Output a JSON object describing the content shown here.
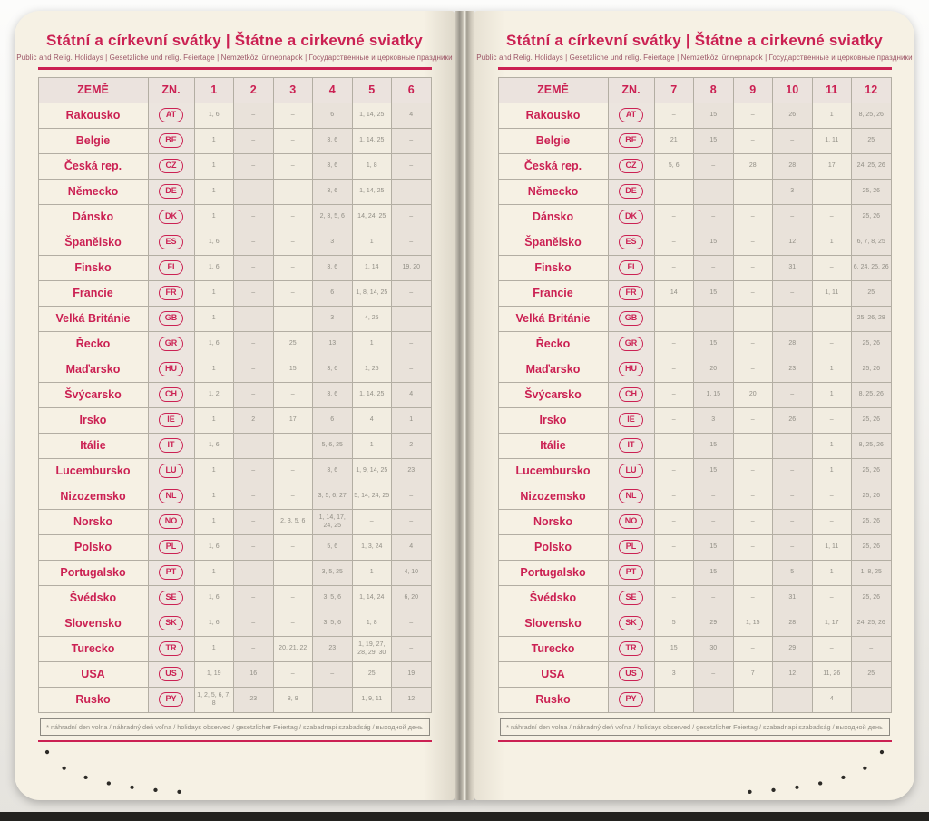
{
  "header": {
    "title": "Státní a církevní svátky | Štátne a cirkevné sviatky",
    "subtitle": "Public and Relig. Holidays | Gesetzliche und relig. Feiertage | Nemzetközi ünnepnapok | Государственные и церковные праздники"
  },
  "footnote": "* náhradní den volna / náhradný deň voľna / holidays observed / gesetzlicher Feiertag / szabadnapi szabadság / выходной день",
  "columns": {
    "country": "ZEMĚ",
    "code": "ZN."
  },
  "colors": {
    "accent_magenta": "#cb2153",
    "subtitle_rose": "#9c5566",
    "page_cream": "#f6f1e4",
    "cell_text_gray": "#918e85",
    "border_gray": "#8d8a82"
  },
  "countries": [
    {
      "name": "Rakousko",
      "code": "AT"
    },
    {
      "name": "Belgie",
      "code": "BE"
    },
    {
      "name": "Česká rep.",
      "code": "CZ"
    },
    {
      "name": "Německo",
      "code": "DE"
    },
    {
      "name": "Dánsko",
      "code": "DK"
    },
    {
      "name": "Španělsko",
      "code": "ES"
    },
    {
      "name": "Finsko",
      "code": "FI"
    },
    {
      "name": "Francie",
      "code": "FR"
    },
    {
      "name": "Velká Británie",
      "code": "GB"
    },
    {
      "name": "Řecko",
      "code": "GR"
    },
    {
      "name": "Maďarsko",
      "code": "HU"
    },
    {
      "name": "Švýcarsko",
      "code": "CH"
    },
    {
      "name": "Irsko",
      "code": "IE"
    },
    {
      "name": "Itálie",
      "code": "IT"
    },
    {
      "name": "Lucembursko",
      "code": "LU"
    },
    {
      "name": "Nizozemsko",
      "code": "NL"
    },
    {
      "name": "Norsko",
      "code": "NO"
    },
    {
      "name": "Polsko",
      "code": "PL"
    },
    {
      "name": "Portugalsko",
      "code": "PT"
    },
    {
      "name": "Švédsko",
      "code": "SE"
    },
    {
      "name": "Slovensko",
      "code": "SK"
    },
    {
      "name": "Turecko",
      "code": "TR"
    },
    {
      "name": "USA",
      "code": "US"
    },
    {
      "name": "Rusko",
      "code": "PY"
    }
  ],
  "pages": [
    {
      "months": [
        "1",
        "2",
        "3",
        "4",
        "5",
        "6"
      ],
      "rows": [
        [
          "1, 6",
          "–",
          "–",
          "6",
          "1, 14, 25",
          "4"
        ],
        [
          "1",
          "–",
          "–",
          "3, 6",
          "1, 14, 25",
          "–"
        ],
        [
          "1",
          "–",
          "–",
          "3, 6",
          "1, 8",
          "–"
        ],
        [
          "1",
          "–",
          "–",
          "3, 6",
          "1, 14, 25",
          "–"
        ],
        [
          "1",
          "–",
          "–",
          "2, 3, 5, 6",
          "14, 24, 25",
          "–"
        ],
        [
          "1, 6",
          "–",
          "–",
          "3",
          "1",
          "–"
        ],
        [
          "1, 6",
          "–",
          "–",
          "3, 6",
          "1, 14",
          "19, 20"
        ],
        [
          "1",
          "–",
          "–",
          "6",
          "1, 8, 14, 25",
          "–"
        ],
        [
          "1",
          "–",
          "–",
          "3",
          "4, 25",
          "–"
        ],
        [
          "1, 6",
          "–",
          "25",
          "13",
          "1",
          "–"
        ],
        [
          "1",
          "–",
          "15",
          "3, 6",
          "1, 25",
          "–"
        ],
        [
          "1, 2",
          "–",
          "–",
          "3, 6",
          "1, 14, 25",
          "4"
        ],
        [
          "1",
          "2",
          "17",
          "6",
          "4",
          "1"
        ],
        [
          "1, 6",
          "–",
          "–",
          "5, 6, 25",
          "1",
          "2"
        ],
        [
          "1",
          "–",
          "–",
          "3, 6",
          "1, 9, 14, 25",
          "23"
        ],
        [
          "1",
          "–",
          "–",
          "3, 5, 6, 27",
          "5, 14, 24, 25",
          "–"
        ],
        [
          "1",
          "–",
          "2, 3, 5, 6",
          "1, 14, 17, 24, 25",
          "–",
          "–"
        ],
        [
          "1, 6",
          "–",
          "–",
          "5, 6",
          "1, 3, 24",
          "4"
        ],
        [
          "1",
          "–",
          "–",
          "3, 5, 25",
          "1",
          "4, 10"
        ],
        [
          "1, 6",
          "–",
          "–",
          "3, 5, 6",
          "1, 14, 24",
          "6, 20"
        ],
        [
          "1, 6",
          "–",
          "–",
          "3, 5, 6",
          "1, 8",
          "–"
        ],
        [
          "1",
          "–",
          "20, 21, 22",
          "23",
          "1, 19, 27, 28, 29, 30",
          "–"
        ],
        [
          "1, 19",
          "16",
          "–",
          "–",
          "25",
          "19"
        ],
        [
          "1, 2, 5, 6, 7, 8",
          "23",
          "8, 9",
          "–",
          "1, 9, 11",
          "12"
        ]
      ]
    },
    {
      "months": [
        "7",
        "8",
        "9",
        "10",
        "11",
        "12"
      ],
      "rows": [
        [
          "–",
          "15",
          "–",
          "26",
          "1",
          "8, 25, 26"
        ],
        [
          "21",
          "15",
          "–",
          "–",
          "1, 11",
          "25"
        ],
        [
          "5, 6",
          "–",
          "28",
          "28",
          "17",
          "24, 25, 26"
        ],
        [
          "–",
          "–",
          "–",
          "3",
          "–",
          "25, 26"
        ],
        [
          "–",
          "–",
          "–",
          "–",
          "–",
          "25, 26"
        ],
        [
          "–",
          "15",
          "–",
          "12",
          "1",
          "6, 7, 8, 25"
        ],
        [
          "–",
          "–",
          "–",
          "31",
          "–",
          "6, 24, 25, 26"
        ],
        [
          "14",
          "15",
          "–",
          "–",
          "1, 11",
          "25"
        ],
        [
          "–",
          "–",
          "–",
          "–",
          "–",
          "25, 26, 28"
        ],
        [
          "–",
          "15",
          "–",
          "28",
          "–",
          "25, 26"
        ],
        [
          "–",
          "20",
          "–",
          "23",
          "1",
          "25, 26"
        ],
        [
          "–",
          "1, 15",
          "20",
          "–",
          "1",
          "8, 25, 26"
        ],
        [
          "–",
          "3",
          "–",
          "26",
          "–",
          "25, 26"
        ],
        [
          "–",
          "15",
          "–",
          "–",
          "1",
          "8, 25, 26"
        ],
        [
          "–",
          "15",
          "–",
          "–",
          "1",
          "25, 26"
        ],
        [
          "–",
          "–",
          "–",
          "–",
          "–",
          "25, 26"
        ],
        [
          "–",
          "–",
          "–",
          "–",
          "–",
          "25, 26"
        ],
        [
          "–",
          "15",
          "–",
          "–",
          "1, 11",
          "25, 26"
        ],
        [
          "–",
          "15",
          "–",
          "5",
          "1",
          "1, 8, 25"
        ],
        [
          "–",
          "–",
          "–",
          "31",
          "–",
          "25, 26"
        ],
        [
          "5",
          "29",
          "1, 15",
          "28",
          "1, 17",
          "24, 25, 26"
        ],
        [
          "15",
          "30",
          "–",
          "29",
          "–",
          "–"
        ],
        [
          "3",
          "–",
          "7",
          "12",
          "11, 26",
          "25"
        ],
        [
          "–",
          "–",
          "–",
          "–",
          "4",
          "–"
        ]
      ]
    }
  ]
}
